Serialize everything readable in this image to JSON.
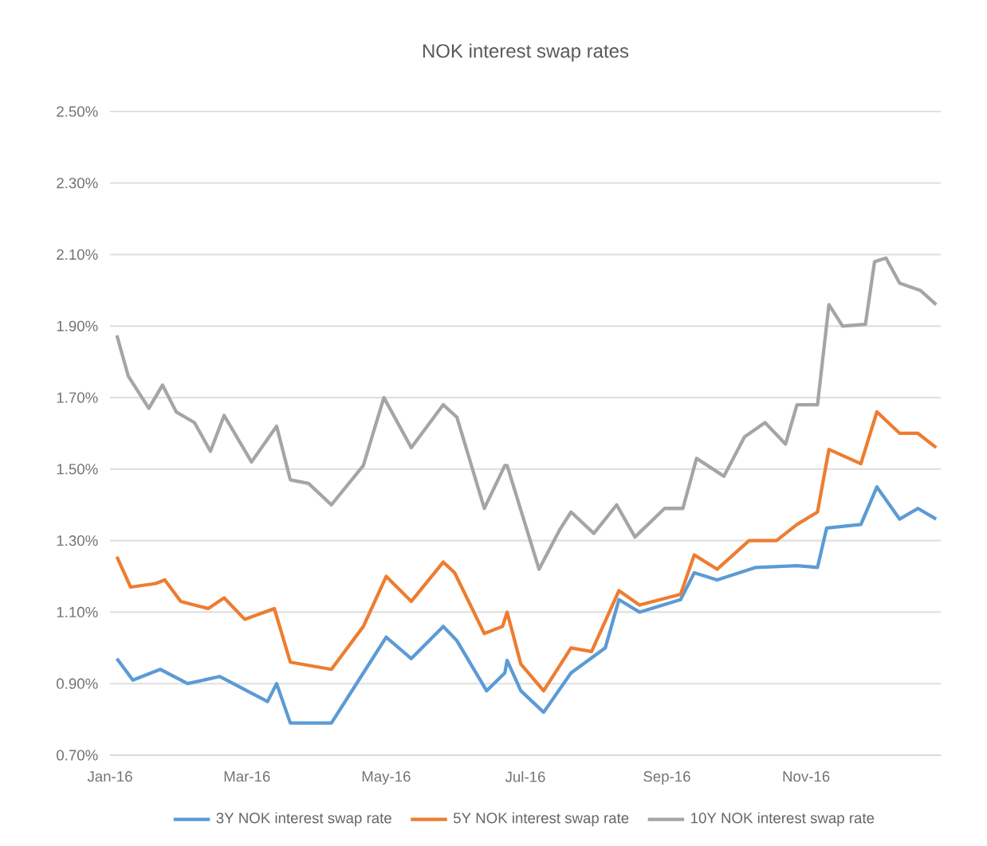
{
  "chart_data": {
    "type": "line",
    "title": "NOK interest swap rates",
    "xlim": [
      "2016-01-01",
      "2016-12-30"
    ],
    "xticks": [
      {
        "value": "2016-01-01",
        "label": "Jan-16"
      },
      {
        "value": "2016-03-01",
        "label": "Mar-16"
      },
      {
        "value": "2016-05-01",
        "label": "May-16"
      },
      {
        "value": "2016-07-01",
        "label": "Jul-16"
      },
      {
        "value": "2016-09-01",
        "label": "Sep-16"
      },
      {
        "value": "2016-11-01",
        "label": "Nov-16"
      }
    ],
    "ylim": [
      0.7,
      2.5
    ],
    "yticks": [
      {
        "value": 0.7,
        "label": "0.70%"
      },
      {
        "value": 0.9,
        "label": "0.90%"
      },
      {
        "value": 1.1,
        "label": "1.10%"
      },
      {
        "value": 1.3,
        "label": "1.30%"
      },
      {
        "value": 1.5,
        "label": "1.50%"
      },
      {
        "value": 1.7,
        "label": "1.70%"
      },
      {
        "value": 1.9,
        "label": "1.90%"
      },
      {
        "value": 2.1,
        "label": "2.10%"
      },
      {
        "value": 2.3,
        "label": "2.30%"
      },
      {
        "value": 2.5,
        "label": "2.50%"
      }
    ],
    "grid": "y",
    "legend": "bottom",
    "marker": "none",
    "line_style": "solid",
    "series": [
      {
        "name": "3Y NOK interest swap rate",
        "color": "#5b9bd5",
        "x": [
          "2016-01-04",
          "2016-01-11",
          "2016-01-23",
          "2016-02-04",
          "2016-02-18",
          "2016-03-10",
          "2016-03-14",
          "2016-03-20",
          "2016-04-07",
          "2016-04-21",
          "2016-05-01",
          "2016-05-12",
          "2016-05-26",
          "2016-06-01",
          "2016-06-14",
          "2016-06-22",
          "2016-06-23",
          "2016-06-29",
          "2016-07-09",
          "2016-07-21",
          "2016-08-05",
          "2016-08-11",
          "2016-08-20",
          "2016-09-07",
          "2016-09-13",
          "2016-09-23",
          "2016-10-10",
          "2016-10-28",
          "2016-11-06",
          "2016-11-10",
          "2016-11-25",
          "2016-12-02",
          "2016-12-12",
          "2016-12-20",
          "2016-12-28"
        ],
        "values": [
          0.97,
          0.91,
          0.94,
          0.9,
          0.92,
          0.85,
          0.9,
          0.79,
          0.79,
          0.93,
          1.03,
          0.97,
          1.06,
          1.02,
          0.88,
          0.93,
          0.965,
          0.88,
          0.82,
          0.93,
          1.0,
          1.135,
          1.1,
          1.135,
          1.21,
          1.19,
          1.225,
          1.23,
          1.225,
          1.335,
          1.345,
          1.45,
          1.36,
          1.39,
          1.36
        ]
      },
      {
        "name": "5Y NOK interest swap rate",
        "color": "#ed7d31",
        "x": [
          "2016-01-04",
          "2016-01-10",
          "2016-01-21",
          "2016-01-25",
          "2016-02-01",
          "2016-02-13",
          "2016-02-20",
          "2016-02-29",
          "2016-03-13",
          "2016-03-20",
          "2016-04-07",
          "2016-04-21",
          "2016-05-01",
          "2016-05-12",
          "2016-05-26",
          "2016-05-31",
          "2016-06-13",
          "2016-06-21",
          "2016-06-23",
          "2016-06-29",
          "2016-07-09",
          "2016-07-21",
          "2016-07-30",
          "2016-08-11",
          "2016-08-20",
          "2016-09-07",
          "2016-09-13",
          "2016-09-23",
          "2016-10-07",
          "2016-10-19",
          "2016-10-28",
          "2016-11-06",
          "2016-11-11",
          "2016-11-25",
          "2016-12-02",
          "2016-12-12",
          "2016-12-20",
          "2016-12-28"
        ],
        "values": [
          1.255,
          1.17,
          1.18,
          1.19,
          1.13,
          1.11,
          1.14,
          1.08,
          1.11,
          0.96,
          0.94,
          1.06,
          1.2,
          1.13,
          1.24,
          1.21,
          1.04,
          1.06,
          1.1,
          0.955,
          0.88,
          1.0,
          0.99,
          1.16,
          1.12,
          1.15,
          1.26,
          1.22,
          1.3,
          1.3,
          1.345,
          1.38,
          1.555,
          1.515,
          1.66,
          1.6,
          1.6,
          1.56
        ]
      },
      {
        "name": "10Y NOK interest swap rate",
        "color": "#a5a5a5",
        "x": [
          "2016-01-04",
          "2016-01-09",
          "2016-01-18",
          "2016-01-24",
          "2016-01-30",
          "2016-02-07",
          "2016-02-14",
          "2016-02-20",
          "2016-03-03",
          "2016-03-14",
          "2016-03-20",
          "2016-03-28",
          "2016-04-07",
          "2016-04-21",
          "2016-04-30",
          "2016-05-12",
          "2016-05-26",
          "2016-06-01",
          "2016-06-13",
          "2016-06-22",
          "2016-06-23",
          "2016-07-07",
          "2016-07-16",
          "2016-07-21",
          "2016-07-31",
          "2016-08-10",
          "2016-08-18",
          "2016-08-31",
          "2016-09-08",
          "2016-09-14",
          "2016-09-26",
          "2016-10-05",
          "2016-10-14",
          "2016-10-23",
          "2016-10-28",
          "2016-11-06",
          "2016-11-11",
          "2016-11-17",
          "2016-11-27",
          "2016-12-01",
          "2016-12-06",
          "2016-12-12",
          "2016-12-21",
          "2016-12-28"
        ],
        "values": [
          1.874,
          1.76,
          1.67,
          1.735,
          1.66,
          1.63,
          1.55,
          1.65,
          1.52,
          1.62,
          1.47,
          1.46,
          1.4,
          1.51,
          1.7,
          1.56,
          1.68,
          1.645,
          1.39,
          1.51,
          1.51,
          1.22,
          1.33,
          1.38,
          1.32,
          1.4,
          1.31,
          1.39,
          1.39,
          1.53,
          1.48,
          1.59,
          1.63,
          1.57,
          1.68,
          1.68,
          1.96,
          1.9,
          1.905,
          2.08,
          2.09,
          2.02,
          2.0,
          1.96
        ]
      }
    ]
  }
}
